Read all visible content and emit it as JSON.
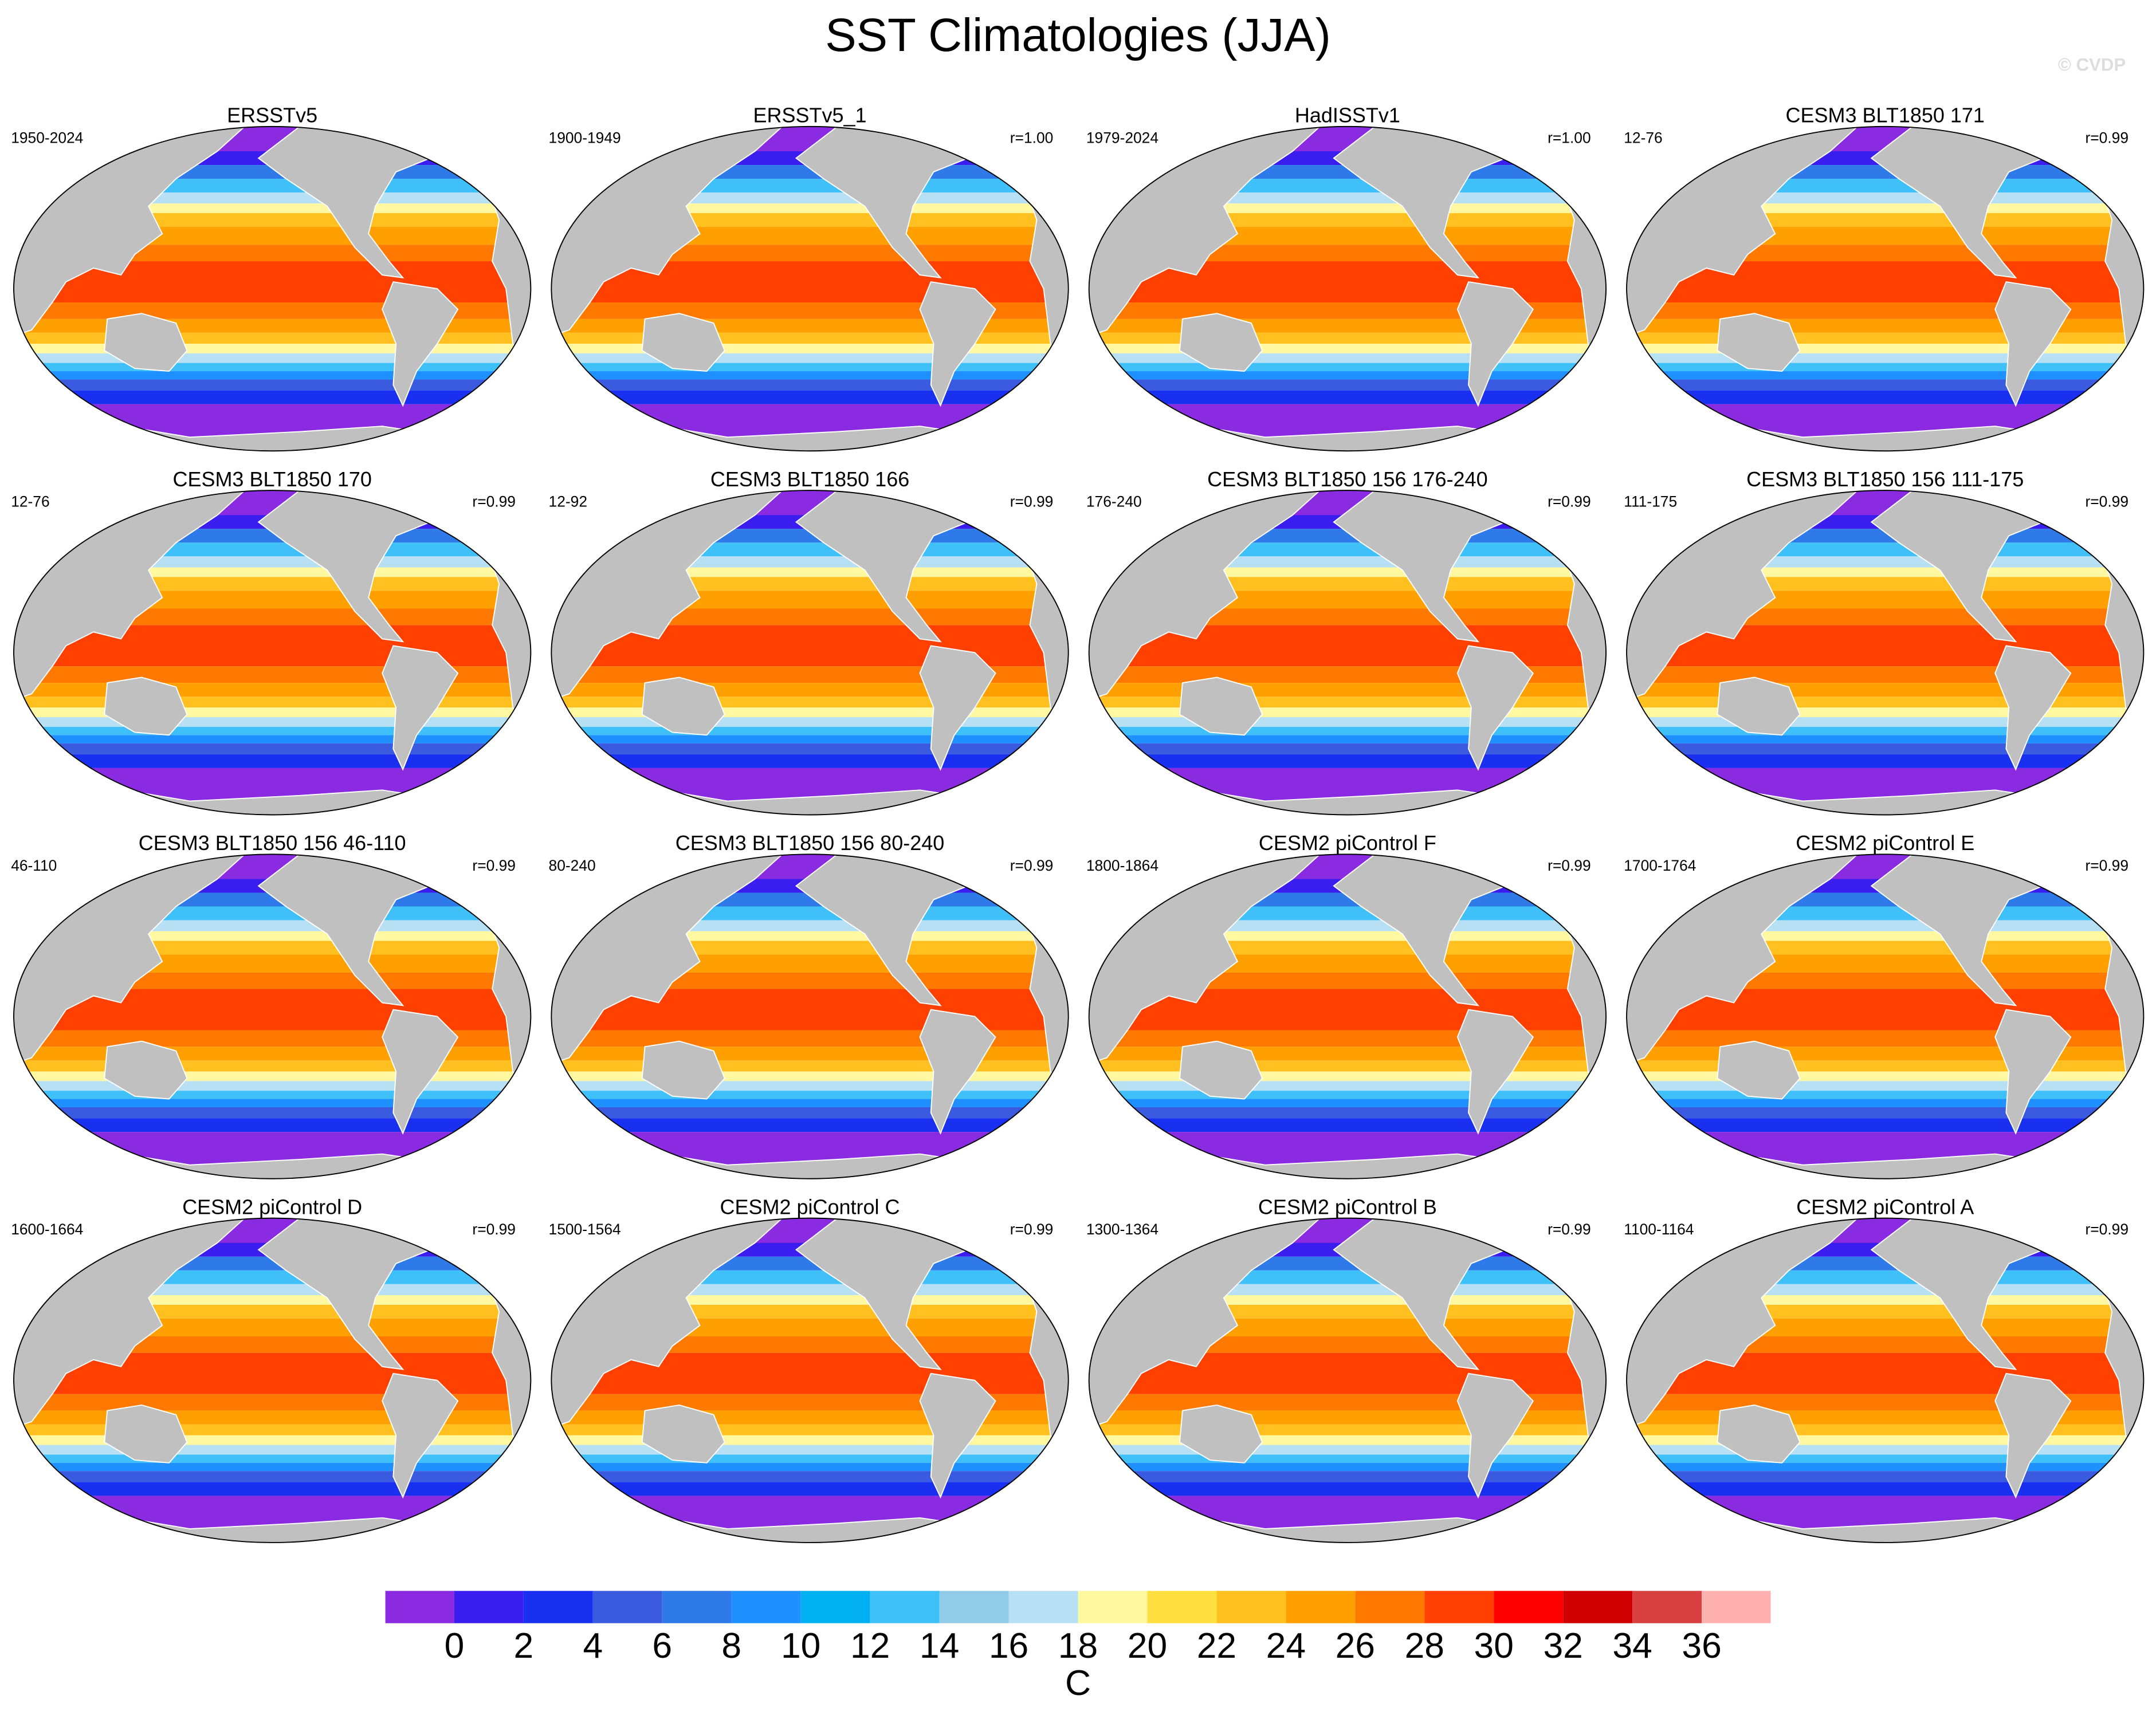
{
  "title": "SST Climatologies (JJA)",
  "watermark": "© CVDP",
  "panels": [
    {
      "title": "ERSSTv5",
      "period": "1950-2024"
    },
    {
      "title": "ERSSTv5_1",
      "period": "1900-1949",
      "r": "r=1.00"
    },
    {
      "title": "HadISSTv1",
      "period": "1979-2024",
      "r": "r=1.00"
    },
    {
      "title": "CESM3 BLT1850 171",
      "period": "12-76",
      "r": "r=0.99"
    },
    {
      "title": "CESM3 BLT1850 170",
      "period": "12-76",
      "r": "r=0.99"
    },
    {
      "title": "CESM3 BLT1850 166",
      "period": "12-92",
      "r": "r=0.99"
    },
    {
      "title": "CESM3 BLT1850 156 176-240",
      "period": "176-240",
      "r": "r=0.99"
    },
    {
      "title": "CESM3 BLT1850 156 111-175",
      "period": "111-175",
      "r": "r=0.99"
    },
    {
      "title": "CESM3 BLT1850 156 46-110",
      "period": "46-110",
      "r": "r=0.99"
    },
    {
      "title": "CESM3 BLT1850 156 80-240",
      "period": "80-240",
      "r": "r=0.99"
    },
    {
      "title": "CESM2 piControl F",
      "period": "1800-1864",
      "r": "r=0.99"
    },
    {
      "title": "CESM2 piControl E",
      "period": "1700-1764",
      "r": "r=0.99"
    },
    {
      "title": "CESM2 piControl D",
      "period": "1600-1664",
      "r": "r=0.99"
    },
    {
      "title": "CESM2 piControl C",
      "period": "1500-1564",
      "r": "r=0.99"
    },
    {
      "title": "CESM2 piControl B",
      "period": "1300-1364",
      "r": "r=0.99"
    },
    {
      "title": "CESM2 piControl A",
      "period": "1100-1164",
      "r": "r=0.99"
    }
  ],
  "colorbar": {
    "colors": [
      "#8a2be2",
      "#3a1ef0",
      "#1a30f0",
      "#3a5ae0",
      "#2e7ae8",
      "#1e90ff",
      "#00b0f0",
      "#40c0f8",
      "#90cce8",
      "#b8e0f5",
      "#fff8a0",
      "#ffe040",
      "#ffc020",
      "#ffa000",
      "#ff7800",
      "#ff4000",
      "#ff0000",
      "#d00000",
      "#d84040",
      "#ffb0b0"
    ],
    "ticks": [
      0,
      2,
      4,
      6,
      8,
      10,
      12,
      14,
      16,
      18,
      20,
      22,
      24,
      26,
      28,
      30,
      32,
      34,
      36
    ],
    "unit": "C"
  }
}
